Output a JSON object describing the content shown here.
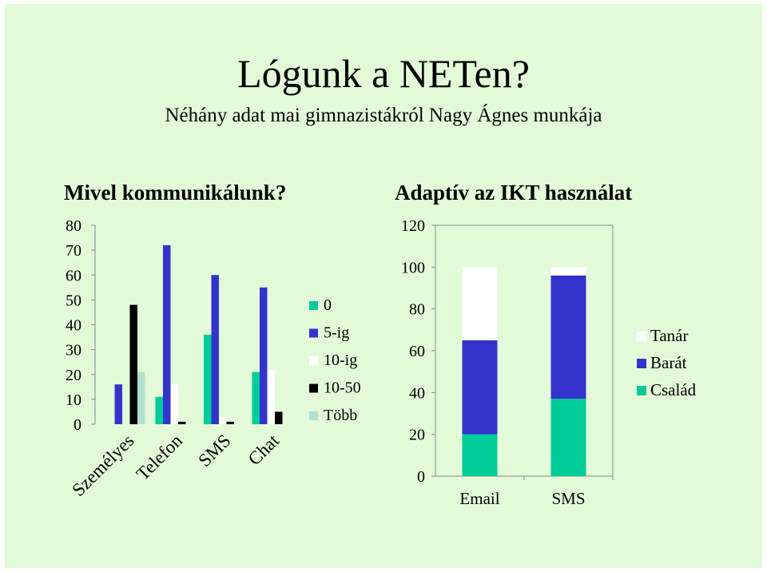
{
  "slide": {
    "title": "Lógunk a NETen?",
    "subtitle": "Néhány adat mai gimnazistákról Nagy Ágnes munkája"
  },
  "colors": {
    "background": "#e3fad8",
    "series_0": "#00cc99",
    "series_5_ig": "#3333cc",
    "series_10_ig": "#ffffff",
    "series_10_50": "#000000",
    "series_tobb": "#b3e0d0",
    "tanar": "#ffffff",
    "barat": "#3333cc",
    "csalad": "#00cc99"
  },
  "chart_data": [
    {
      "type": "bar",
      "title": "Mivel kommunikálunk?",
      "categories": [
        "Személyes",
        "Telefon",
        "SMS",
        "Chat"
      ],
      "ylim": [
        0,
        80
      ],
      "yticks": [
        0,
        10,
        20,
        30,
        40,
        50,
        60,
        70,
        80
      ],
      "grid": false,
      "legend_position": "right",
      "series": [
        {
          "name": "0",
          "color": "#00cc99",
          "values": [
            0,
            11,
            36,
            21
          ]
        },
        {
          "name": "5-ig",
          "color": "#3333cc",
          "values": [
            16,
            72,
            60,
            55
          ]
        },
        {
          "name": "10-ig",
          "color": "#ffffff",
          "values": [
            0,
            16,
            3,
            22
          ]
        },
        {
          "name": "10-50",
          "color": "#000000",
          "values": [
            48,
            1,
            1,
            5
          ]
        },
        {
          "name": "Több",
          "color": "#b3e0d0",
          "values": [
            21,
            0,
            0,
            0
          ]
        }
      ]
    },
    {
      "type": "bar",
      "stacked": true,
      "title": "Adaptív az IKT használat",
      "categories": [
        "Email",
        "SMS"
      ],
      "ylim": [
        0,
        120
      ],
      "yticks": [
        0,
        20,
        40,
        60,
        80,
        100,
        120
      ],
      "grid": false,
      "legend_position": "right",
      "series": [
        {
          "name": "Család",
          "color": "#00cc99",
          "values": [
            20,
            37
          ]
        },
        {
          "name": "Barát",
          "color": "#3333cc",
          "values": [
            45,
            59
          ]
        },
        {
          "name": "Tanár",
          "color": "#ffffff",
          "values": [
            35,
            4
          ]
        }
      ],
      "legend_order": [
        "Tanár",
        "Barát",
        "Család"
      ]
    }
  ]
}
